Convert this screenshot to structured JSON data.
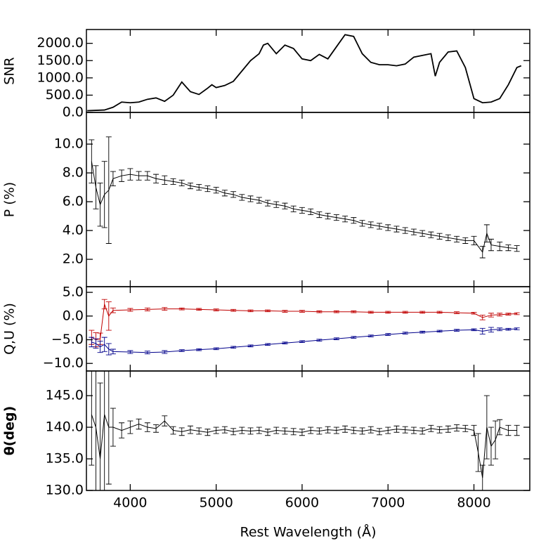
{
  "chart_data": [
    {
      "type": "line",
      "ylabel": "SNR",
      "xlim": [
        3490,
        8650
      ],
      "xticks": [
        4000,
        5000,
        6000,
        7000,
        8000
      ],
      "ylim": [
        0,
        2400
      ],
      "yticks": [
        {
          "value": 0,
          "label": "0.0"
        },
        {
          "value": 500,
          "label": "500.0"
        },
        {
          "value": 1000,
          "label": "1000.0"
        },
        {
          "value": 1500,
          "label": "1500.0"
        },
        {
          "value": 2000,
          "label": "2000.0"
        }
      ],
      "x": [
        3500,
        3600,
        3700,
        3800,
        3900,
        4000,
        4100,
        4200,
        4300,
        4400,
        4500,
        4600,
        4700,
        4800,
        4900,
        4950,
        5000,
        5100,
        5200,
        5300,
        5400,
        5500,
        5550,
        5600,
        5700,
        5800,
        5900,
        6000,
        6100,
        6200,
        6300,
        6400,
        6500,
        6600,
        6700,
        6800,
        6900,
        7000,
        7100,
        7200,
        7300,
        7400,
        7500,
        7550,
        7600,
        7700,
        7800,
        7900,
        8000,
        8100,
        8200,
        8300,
        8400,
        8500,
        8550
      ],
      "series": [
        {
          "color": "#000000",
          "values": [
            50,
            60,
            70,
            150,
            300,
            280,
            300,
            380,
            420,
            320,
            500,
            880,
            600,
            520,
            700,
            800,
            720,
            780,
            900,
            1200,
            1500,
            1700,
            1950,
            2000,
            1700,
            1950,
            1850,
            1550,
            1500,
            1680,
            1550,
            1900,
            2250,
            2200,
            1700,
            1450,
            1380,
            1380,
            1350,
            1400,
            1600,
            1650,
            1700,
            1050,
            1450,
            1750,
            1780,
            1300,
            400,
            280,
            300,
            400,
            800,
            1300,
            1350
          ]
        }
      ]
    },
    {
      "type": "errorbar",
      "ylabel": "P (%)",
      "xlim": [
        3490,
        8650
      ],
      "xticks": [
        4000,
        5000,
        6000,
        7000,
        8000
      ],
      "ylim": [
        0.1,
        12.2
      ],
      "yticks": [
        {
          "value": 2,
          "label": "2.0"
        },
        {
          "value": 4,
          "label": "4.0"
        },
        {
          "value": 6,
          "label": "6.0"
        },
        {
          "value": 8,
          "label": "8.0"
        },
        {
          "value": 10,
          "label": "10.0"
        }
      ],
      "x": [
        3550,
        3600,
        3650,
        3700,
        3750,
        3800,
        3900,
        4000,
        4100,
        4200,
        4300,
        4400,
        4500,
        4600,
        4700,
        4800,
        4900,
        5000,
        5100,
        5200,
        5300,
        5400,
        5500,
        5600,
        5700,
        5800,
        5900,
        6000,
        6100,
        6200,
        6300,
        6400,
        6500,
        6600,
        6700,
        6800,
        6900,
        7000,
        7100,
        7200,
        7300,
        7400,
        7500,
        7600,
        7700,
        7800,
        7900,
        8000,
        8100,
        8150,
        8200,
        8300,
        8400,
        8500
      ],
      "series": [
        {
          "color": "#000000",
          "values": [
            8.8,
            7.0,
            5.8,
            6.5,
            6.8,
            7.6,
            7.8,
            7.9,
            7.8,
            7.8,
            7.6,
            7.5,
            7.4,
            7.3,
            7.1,
            7.0,
            6.9,
            6.8,
            6.6,
            6.5,
            6.3,
            6.2,
            6.1,
            5.9,
            5.8,
            5.7,
            5.5,
            5.4,
            5.3,
            5.1,
            5.0,
            4.9,
            4.8,
            4.7,
            4.5,
            4.4,
            4.3,
            4.2,
            4.1,
            4.0,
            3.9,
            3.8,
            3.7,
            3.6,
            3.5,
            3.4,
            3.3,
            3.3,
            2.5,
            3.8,
            3.0,
            2.9,
            2.8,
            2.75
          ],
          "errors": [
            1.5,
            1.5,
            1.5,
            2.3,
            3.7,
            0.5,
            0.4,
            0.4,
            0.3,
            0.3,
            0.3,
            0.3,
            0.2,
            0.2,
            0.2,
            0.2,
            0.2,
            0.2,
            0.2,
            0.2,
            0.2,
            0.2,
            0.2,
            0.2,
            0.2,
            0.2,
            0.2,
            0.2,
            0.2,
            0.2,
            0.2,
            0.2,
            0.2,
            0.2,
            0.2,
            0.2,
            0.2,
            0.2,
            0.2,
            0.2,
            0.2,
            0.2,
            0.2,
            0.2,
            0.2,
            0.2,
            0.2,
            0.3,
            0.4,
            0.6,
            0.4,
            0.3,
            0.2,
            0.2
          ]
        }
      ]
    },
    {
      "type": "errorbar",
      "ylabel": "Q,U (%)",
      "xlim": [
        3490,
        8650
      ],
      "xticks": [
        4000,
        5000,
        6000,
        7000,
        8000
      ],
      "ylim": [
        -11.6,
        6.2
      ],
      "yticks": [
        {
          "value": -10,
          "label": "−10.0"
        },
        {
          "value": -5,
          "label": "−5.0"
        },
        {
          "value": 0,
          "label": "0.0"
        },
        {
          "value": 5,
          "label": "5.0"
        }
      ],
      "x": [
        3550,
        3600,
        3650,
        3700,
        3750,
        3800,
        4000,
        4200,
        4400,
        4600,
        4800,
        5000,
        5200,
        5400,
        5600,
        5800,
        6000,
        6200,
        6400,
        6600,
        6800,
        7000,
        7200,
        7400,
        7600,
        7800,
        8000,
        8100,
        8200,
        8300,
        8400,
        8500
      ],
      "series": [
        {
          "color": "#c00000",
          "values": [
            -4.5,
            -5.0,
            -4.8,
            2.5,
            0.0,
            1.2,
            1.3,
            1.4,
            1.5,
            1.5,
            1.4,
            1.3,
            1.2,
            1.1,
            1.1,
            1.0,
            1.0,
            0.9,
            0.9,
            0.9,
            0.8,
            0.8,
            0.8,
            0.8,
            0.8,
            0.7,
            0.6,
            -0.3,
            0.2,
            0.3,
            0.4,
            0.5
          ],
          "errors": [
            1.5,
            1.5,
            1.2,
            1.0,
            3.0,
            0.5,
            0.3,
            0.3,
            0.3,
            0.2,
            0.2,
            0.2,
            0.2,
            0.2,
            0.2,
            0.2,
            0.2,
            0.2,
            0.2,
            0.2,
            0.2,
            0.2,
            0.2,
            0.2,
            0.2,
            0.2,
            0.2,
            0.5,
            0.4,
            0.3,
            0.2,
            0.2
          ]
        },
        {
          "color": "#00008b",
          "values": [
            -5.5,
            -5.8,
            -6.5,
            -6.0,
            -7.0,
            -7.5,
            -7.6,
            -7.7,
            -7.6,
            -7.3,
            -7.1,
            -6.9,
            -6.6,
            -6.3,
            -6.0,
            -5.7,
            -5.4,
            -5.1,
            -4.8,
            -4.5,
            -4.2,
            -3.9,
            -3.6,
            -3.4,
            -3.2,
            -3.0,
            -2.9,
            -3.2,
            -2.9,
            -2.8,
            -2.8,
            -2.7
          ],
          "errors": [
            1.0,
            1.0,
            1.2,
            1.5,
            1.2,
            0.5,
            0.3,
            0.3,
            0.3,
            0.2,
            0.2,
            0.2,
            0.2,
            0.2,
            0.2,
            0.2,
            0.2,
            0.2,
            0.2,
            0.2,
            0.2,
            0.2,
            0.2,
            0.2,
            0.2,
            0.2,
            0.2,
            0.6,
            0.5,
            0.3,
            0.2,
            0.2
          ]
        }
      ]
    },
    {
      "type": "errorbar",
      "ylabel": "θ(deg)",
      "xlabel": "Rest Wavelength (Å)",
      "xlim": [
        3490,
        8650
      ],
      "xticks": [
        4000,
        5000,
        6000,
        7000,
        8000
      ],
      "ylim": [
        130,
        148.9
      ],
      "yticks": [
        {
          "value": 130,
          "label": "130.0"
        },
        {
          "value": 135,
          "label": "135.0"
        },
        {
          "value": 140,
          "label": "140.0"
        },
        {
          "value": 145,
          "label": "145.0"
        }
      ],
      "x": [
        3550,
        3600,
        3650,
        3700,
        3750,
        3800,
        3900,
        4000,
        4100,
        4200,
        4300,
        4400,
        4500,
        4600,
        4700,
        4800,
        4900,
        5000,
        5100,
        5200,
        5300,
        5400,
        5500,
        5600,
        5700,
        5800,
        5900,
        6000,
        6100,
        6200,
        6300,
        6400,
        6500,
        6600,
        6700,
        6800,
        6900,
        7000,
        7100,
        7200,
        7300,
        7400,
        7500,
        7600,
        7700,
        7800,
        7900,
        8000,
        8050,
        8100,
        8150,
        8200,
        8250,
        8300,
        8400,
        8500
      ],
      "series": [
        {
          "color": "#000000",
          "values": [
            142,
            140,
            135,
            142,
            140,
            140,
            139.5,
            140,
            140.5,
            140,
            139.8,
            141,
            139.5,
            139.3,
            139.6,
            139.4,
            139.2,
            139.5,
            139.6,
            139.3,
            139.5,
            139.4,
            139.5,
            139.2,
            139.5,
            139.4,
            139.3,
            139.2,
            139.5,
            139.4,
            139.6,
            139.5,
            139.7,
            139.5,
            139.4,
            139.6,
            139.3,
            139.5,
            139.7,
            139.6,
            139.5,
            139.4,
            139.8,
            139.6,
            139.7,
            139.9,
            139.8,
            139.5,
            136,
            132,
            140,
            137,
            138,
            140,
            139.5,
            139.5
          ],
          "errors": [
            8,
            10,
            12,
            12,
            9,
            3,
            1.2,
            1.0,
            0.8,
            0.7,
            0.6,
            0.8,
            0.6,
            0.6,
            0.6,
            0.5,
            0.5,
            0.5,
            0.5,
            0.5,
            0.5,
            0.5,
            0.5,
            0.5,
            0.5,
            0.5,
            0.5,
            0.5,
            0.5,
            0.5,
            0.5,
            0.5,
            0.5,
            0.5,
            0.5,
            0.5,
            0.5,
            0.5,
            0.5,
            0.5,
            0.5,
            0.5,
            0.5,
            0.5,
            0.5,
            0.5,
            0.5,
            0.8,
            3,
            2,
            5,
            3,
            3,
            1.2,
            0.8,
            0.8
          ]
        }
      ]
    }
  ]
}
